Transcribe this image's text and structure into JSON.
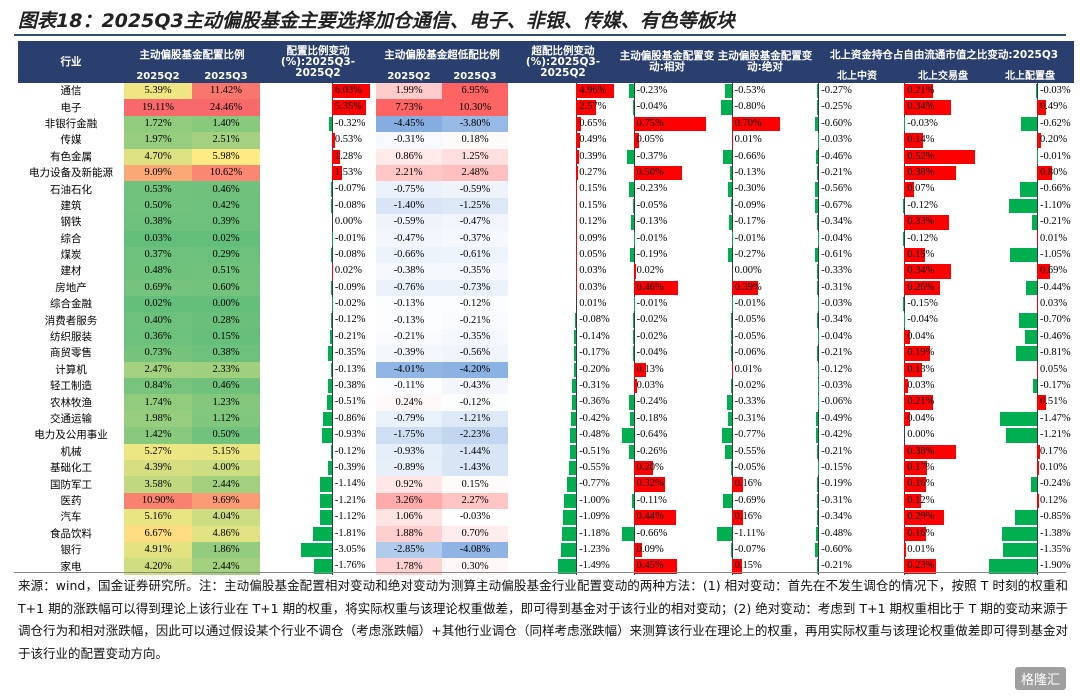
{
  "title": "图表18：2025Q3主动偏股基金主要选择加仓通信、电子、非银、传媒、有色等板块",
  "headers": {
    "industry": "行业",
    "alloc_group": "主动偏股基金配置比例",
    "alloc_change": "配置比例变动(%):2025Q3-2025Q2",
    "over_group": "主动偏股基金超低配比例",
    "over_change": "超配比例变动(%):2025Q3-2025Q2",
    "rel_change": "主动偏股基金配置变动:相对",
    "abs_change": "主动偏股基金配置变动:绝对",
    "north_group": "北上资金持仓占自由流通市值之比变动:2025Q3",
    "sub_q2": "2025Q2",
    "sub_q3": "2025Q3",
    "sub_over_q2": "2025Q2",
    "sub_over_q3": "2025Q3",
    "north_mid": "北上中资",
    "north_trade": "北上交易盘",
    "north_alloc": "北上配置盘"
  },
  "rows": [
    {
      "name": "通信",
      "q2": "5.39%",
      "q3": "11.42%",
      "chg": "6.03%",
      "oq2": "1.99%",
      "oq3": "6.95%",
      "ochg": "4.96%",
      "rel": "-0.23%",
      "abs": "-0.53%",
      "nm": "-0.27%",
      "nt": "0.21%",
      "na": "-0.03%"
    },
    {
      "name": "电子",
      "q2": "19.11%",
      "q3": "24.46%",
      "chg": "5.35%",
      "oq2": "7.73%",
      "oq3": "10.30%",
      "ochg": "2.57%",
      "rel": "-0.04%",
      "abs": "-0.80%",
      "nm": "-0.25%",
      "nt": "0.34%",
      "na": "0.49%"
    },
    {
      "name": "非银行金融",
      "q2": "1.72%",
      "q3": "1.40%",
      "chg": "-0.32%",
      "oq2": "-4.45%",
      "oq3": "-3.80%",
      "ochg": "0.65%",
      "rel": "0.75%",
      "abs": "0.70%",
      "nm": "-0.60%",
      "nt": "-0.03%",
      "na": "-0.62%"
    },
    {
      "name": "传媒",
      "q2": "1.97%",
      "q3": "2.51%",
      "chg": "0.53%",
      "oq2": "-0.31%",
      "oq3": "0.18%",
      "ochg": "0.49%",
      "rel": "0.05%",
      "abs": "0.01%",
      "nm": "-0.03%",
      "nt": "0.14%",
      "na": "0.20%"
    },
    {
      "name": "有色金属",
      "q2": "4.70%",
      "q3": "5.98%",
      "chg": "1.28%",
      "oq2": "0.86%",
      "oq3": "1.25%",
      "ochg": "0.39%",
      "rel": "-0.37%",
      "abs": "-0.66%",
      "nm": "-0.46%",
      "nt": "0.52%",
      "na": "-0.01%"
    },
    {
      "name": "电力设备及新能源",
      "q2": "9.09%",
      "q3": "10.62%",
      "chg": "1.53%",
      "oq2": "2.21%",
      "oq3": "2.48%",
      "ochg": "0.27%",
      "rel": "0.50%",
      "abs": "-0.13%",
      "nm": "-0.21%",
      "nt": "0.38%",
      "na": "0.80%"
    },
    {
      "name": "石油石化",
      "q2": "0.53%",
      "q3": "0.46%",
      "chg": "-0.07%",
      "oq2": "-0.75%",
      "oq3": "-0.59%",
      "ochg": "0.15%",
      "rel": "-0.23%",
      "abs": "-0.30%",
      "nm": "-0.56%",
      "nt": "0.07%",
      "na": "-0.66%"
    },
    {
      "name": "建筑",
      "q2": "0.50%",
      "q3": "0.42%",
      "chg": "-0.08%",
      "oq2": "-1.40%",
      "oq3": "-1.25%",
      "ochg": "0.15%",
      "rel": "-0.05%",
      "abs": "-0.09%",
      "nm": "-0.67%",
      "nt": "-0.12%",
      "na": "-1.10%"
    },
    {
      "name": "钢铁",
      "q2": "0.38%",
      "q3": "0.39%",
      "chg": "0.00%",
      "oq2": "-0.59%",
      "oq3": "-0.47%",
      "ochg": "0.12%",
      "rel": "-0.13%",
      "abs": "-0.17%",
      "nm": "-0.34%",
      "nt": "0.33%",
      "na": "-0.21%"
    },
    {
      "name": "综合",
      "q2": "0.03%",
      "q3": "0.02%",
      "chg": "-0.01%",
      "oq2": "-0.47%",
      "oq3": "-0.37%",
      "ochg": "0.09%",
      "rel": "-0.01%",
      "abs": "-0.01%",
      "nm": "-0.04%",
      "nt": "-0.12%",
      "na": "0.01%"
    },
    {
      "name": "煤炭",
      "q2": "0.37%",
      "q3": "0.29%",
      "chg": "-0.08%",
      "oq2": "-0.66%",
      "oq3": "-0.61%",
      "ochg": "0.05%",
      "rel": "-0.19%",
      "abs": "-0.27%",
      "nm": "-0.61%",
      "nt": "0.15%",
      "na": "-1.05%"
    },
    {
      "name": "建材",
      "q2": "0.48%",
      "q3": "0.51%",
      "chg": "0.02%",
      "oq2": "-0.38%",
      "oq3": "-0.35%",
      "ochg": "0.03%",
      "rel": "0.02%",
      "abs": "0.00%",
      "nm": "-0.33%",
      "nt": "0.34%",
      "na": "0.69%"
    },
    {
      "name": "房地产",
      "q2": "0.69%",
      "q3": "0.60%",
      "chg": "-0.09%",
      "oq2": "-0.76%",
      "oq3": "-0.73%",
      "ochg": "0.03%",
      "rel": "0.46%",
      "abs": "0.39%",
      "nm": "-0.31%",
      "nt": "0.26%",
      "na": "-0.44%"
    },
    {
      "name": "综合金融",
      "q2": "0.02%",
      "q3": "0.00%",
      "chg": "-0.02%",
      "oq2": "-0.13%",
      "oq3": "-0.12%",
      "ochg": "0.01%",
      "rel": "-0.01%",
      "abs": "-0.01%",
      "nm": "-0.03%",
      "nt": "-0.15%",
      "na": "0.03%"
    },
    {
      "name": "消费者服务",
      "q2": "0.40%",
      "q3": "0.28%",
      "chg": "-0.12%",
      "oq2": "-0.13%",
      "oq3": "-0.21%",
      "ochg": "-0.08%",
      "rel": "-0.02%",
      "abs": "-0.05%",
      "nm": "-0.34%",
      "nt": "-0.04%",
      "na": "-0.70%"
    },
    {
      "name": "纺织服装",
      "q2": "0.36%",
      "q3": "0.15%",
      "chg": "-0.21%",
      "oq2": "-0.21%",
      "oq3": "-0.35%",
      "ochg": "-0.14%",
      "rel": "-0.02%",
      "abs": "-0.05%",
      "nm": "-0.04%",
      "nt": "0.04%",
      "na": "-0.46%"
    },
    {
      "name": "商贸零售",
      "q2": "0.73%",
      "q3": "0.38%",
      "chg": "-0.35%",
      "oq2": "-0.39%",
      "oq3": "-0.56%",
      "ochg": "-0.17%",
      "rel": "-0.04%",
      "abs": "-0.06%",
      "nm": "-0.21%",
      "nt": "0.19%",
      "na": "-0.81%"
    },
    {
      "name": "计算机",
      "q2": "2.47%",
      "q3": "2.33%",
      "chg": "-0.13%",
      "oq2": "-4.01%",
      "oq3": "-4.20%",
      "ochg": "-0.20%",
      "rel": "0.13%",
      "abs": "0.01%",
      "nm": "-0.12%",
      "nt": "0.13%",
      "na": "0.05%"
    },
    {
      "name": "轻工制造",
      "q2": "0.84%",
      "q3": "0.46%",
      "chg": "-0.38%",
      "oq2": "-0.11%",
      "oq3": "-0.43%",
      "ochg": "-0.31%",
      "rel": "0.03%",
      "abs": "-0.02%",
      "nm": "-0.03%",
      "nt": "0.03%",
      "na": "-0.17%"
    },
    {
      "name": "农林牧渔",
      "q2": "1.74%",
      "q3": "1.23%",
      "chg": "-0.51%",
      "oq2": "0.24%",
      "oq3": "-0.12%",
      "ochg": "-0.36%",
      "rel": "-0.24%",
      "abs": "-0.33%",
      "nm": "-0.06%",
      "nt": "0.21%",
      "na": "0.51%"
    },
    {
      "name": "交通运输",
      "q2": "1.98%",
      "q3": "1.12%",
      "chg": "-0.86%",
      "oq2": "-0.79%",
      "oq3": "-1.21%",
      "ochg": "-0.42%",
      "rel": "-0.18%",
      "abs": "-0.31%",
      "nm": "-0.49%",
      "nt": "0.04%",
      "na": "-1.47%"
    },
    {
      "name": "电力及公用事业",
      "q2": "1.42%",
      "q3": "0.50%",
      "chg": "-0.93%",
      "oq2": "-1.75%",
      "oq3": "-2.23%",
      "ochg": "-0.48%",
      "rel": "-0.64%",
      "abs": "-0.77%",
      "nm": "-0.42%",
      "nt": "0.00%",
      "na": "-1.21%"
    },
    {
      "name": "机械",
      "q2": "5.27%",
      "q3": "5.15%",
      "chg": "-0.12%",
      "oq2": "-0.93%",
      "oq3": "-1.44%",
      "ochg": "-0.51%",
      "rel": "-0.26%",
      "abs": "-0.55%",
      "nm": "-0.21%",
      "nt": "0.38%",
      "na": "0.17%"
    },
    {
      "name": "基础化工",
      "q2": "4.39%",
      "q3": "4.00%",
      "chg": "-0.39%",
      "oq2": "-0.89%",
      "oq3": "-1.43%",
      "ochg": "-0.55%",
      "rel": "0.20%",
      "abs": "-0.05%",
      "nm": "-0.15%",
      "nt": "0.17%",
      "na": "0.10%"
    },
    {
      "name": "国防军工",
      "q2": "3.58%",
      "q3": "2.44%",
      "chg": "-1.14%",
      "oq2": "0.92%",
      "oq3": "0.15%",
      "ochg": "-0.77%",
      "rel": "0.32%",
      "abs": "0.16%",
      "nm": "-0.19%",
      "nt": "0.16%",
      "na": "-0.24%"
    },
    {
      "name": "医药",
      "q2": "10.90%",
      "q3": "9.69%",
      "chg": "-1.21%",
      "oq2": "3.26%",
      "oq3": "2.27%",
      "ochg": "-1.00%",
      "rel": "-0.11%",
      "abs": "-0.69%",
      "nm": "-0.31%",
      "nt": "0.12%",
      "na": "0.12%"
    },
    {
      "name": "汽车",
      "q2": "5.16%",
      "q3": "4.04%",
      "chg": "-1.12%",
      "oq2": "1.06%",
      "oq3": "-0.03%",
      "ochg": "-1.09%",
      "rel": "0.44%",
      "abs": "0.16%",
      "nm": "-0.34%",
      "nt": "0.29%",
      "na": "-0.85%"
    },
    {
      "name": "食品饮料",
      "q2": "6.67%",
      "q3": "4.86%",
      "chg": "-1.81%",
      "oq2": "1.88%",
      "oq3": "0.70%",
      "ochg": "-1.18%",
      "rel": "-0.66%",
      "abs": "-1.11%",
      "nm": "-0.48%",
      "nt": "0.16%",
      "na": "-1.38%"
    },
    {
      "name": "银行",
      "q2": "4.91%",
      "q3": "1.86%",
      "chg": "-3.05%",
      "oq2": "-2.85%",
      "oq3": "-4.08%",
      "ochg": "-1.23%",
      "rel": "0.09%",
      "abs": "-0.07%",
      "nm": "-0.60%",
      "nt": "0.01%",
      "na": "-1.35%"
    },
    {
      "name": "家电",
      "q2": "4.20%",
      "q3": "2.44%",
      "chg": "-1.76%",
      "oq2": "1.78%",
      "oq3": "0.30%",
      "ochg": "-1.49%",
      "rel": "0.45%",
      "abs": "0.15%",
      "nm": "-0.21%",
      "nt": "0.23%",
      "na": "-1.90%"
    }
  ],
  "note": "来源：wind，国金证券研究所。注：主动偏股基金配置相对变动和绝对变动为测算主动偏股基金行业配置变动的两种方法：(1) 相对变动：首先在不发生调仓的情况下，按照 T 时刻的权重和 T+1 期的涨跌幅可以得到理论上该行业在 T+1 期的权重，将实际权重与该理论权重做差，即可得到基金对于该行业的相对变动；(2) 绝对变动：考虑到 T+1 期权重相比于 T 期的变动来源于调仓行为和相对涨跌幅，因此可以通过假设某个行业不调仓（考虑涨跌幅）+其他行业调仓（同样考虑涨跌幅）来测算该行业在理论上的权重，再用实际权重与该理论权重做差即可得到基金对于该行业的配置变动方向。",
  "watermark": "格隆汇",
  "colors": {
    "header": "#2a3f6e",
    "pos_bar": "#ff0000",
    "neg_bar": "#00b050"
  }
}
